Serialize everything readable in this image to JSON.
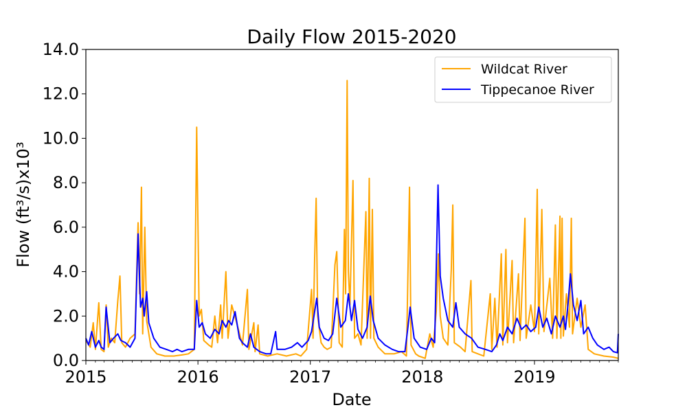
{
  "chart_data": {
    "type": "line",
    "title": "Daily Flow 2015-2020",
    "xlabel": "Date",
    "ylabel": "Flow (ft³/s)x10³",
    "xlim": [
      "2015-01-01",
      "2019-10-01"
    ],
    "ylim": [
      0,
      14
    ],
    "yticks": [
      "0.0",
      "2.0",
      "4.0",
      "6.0",
      "8.0",
      "10.0",
      "12.0",
      "14.0"
    ],
    "xticks": [
      "2015",
      "2016",
      "2017",
      "2018",
      "2019"
    ],
    "legend": {
      "position": "top-right"
    },
    "grid": false,
    "series": [
      {
        "name": "Wildcat River",
        "color": "#FFA500",
        "points": [
          [
            "2015-01-01",
            0.9
          ],
          [
            "2015-01-15",
            0.6
          ],
          [
            "2015-01-25",
            1.7
          ],
          [
            "2015-02-01",
            0.5
          ],
          [
            "2015-02-12",
            2.6
          ],
          [
            "2015-02-20",
            0.5
          ],
          [
            "2015-03-01",
            0.4
          ],
          [
            "2015-03-08",
            2.5
          ],
          [
            "2015-03-15",
            0.6
          ],
          [
            "2015-03-25",
            1.0
          ],
          [
            "2015-04-05",
            0.8
          ],
          [
            "2015-04-15",
            2.7
          ],
          [
            "2015-04-22",
            3.8
          ],
          [
            "2015-04-28",
            0.8
          ],
          [
            "2015-05-10",
            0.6
          ],
          [
            "2015-05-25",
            1.0
          ],
          [
            "2015-06-10",
            1.2
          ],
          [
            "2015-06-20",
            6.2
          ],
          [
            "2015-06-25",
            3.0
          ],
          [
            "2015-07-01",
            7.8
          ],
          [
            "2015-07-05",
            1.2
          ],
          [
            "2015-07-12",
            6.0
          ],
          [
            "2015-07-18",
            1.8
          ],
          [
            "2015-08-01",
            0.6
          ],
          [
            "2015-08-20",
            0.3
          ],
          [
            "2015-09-15",
            0.2
          ],
          [
            "2015-10-15",
            0.2
          ],
          [
            "2015-11-10",
            0.25
          ],
          [
            "2015-12-01",
            0.3
          ],
          [
            "2015-12-20",
            0.5
          ],
          [
            "2015-12-28",
            10.5
          ],
          [
            "2016-01-05",
            2.0
          ],
          [
            "2016-01-12",
            2.3
          ],
          [
            "2016-01-20",
            0.9
          ],
          [
            "2016-02-05",
            0.7
          ],
          [
            "2016-02-15",
            0.6
          ],
          [
            "2016-02-25",
            2.0
          ],
          [
            "2016-03-05",
            0.8
          ],
          [
            "2016-03-15",
            2.5
          ],
          [
            "2016-03-20",
            1.0
          ],
          [
            "2016-04-01",
            4.0
          ],
          [
            "2016-04-08",
            1.0
          ],
          [
            "2016-04-20",
            2.5
          ],
          [
            "2016-04-28",
            2.1
          ],
          [
            "2016-05-10",
            1.5
          ],
          [
            "2016-05-25",
            0.7
          ],
          [
            "2016-06-10",
            3.2
          ],
          [
            "2016-06-15",
            0.5
          ],
          [
            "2016-07-01",
            1.7
          ],
          [
            "2016-07-05",
            0.4
          ],
          [
            "2016-07-15",
            1.6
          ],
          [
            "2016-07-20",
            0.3
          ],
          [
            "2016-08-15",
            0.2
          ],
          [
            "2016-09-15",
            0.3
          ],
          [
            "2016-10-15",
            0.2
          ],
          [
            "2016-11-15",
            0.3
          ],
          [
            "2016-12-01",
            0.2
          ],
          [
            "2016-12-20",
            0.5
          ],
          [
            "2017-01-05",
            3.2
          ],
          [
            "2017-01-10",
            1.0
          ],
          [
            "2017-01-15",
            4.6
          ],
          [
            "2017-01-20",
            7.3
          ],
          [
            "2017-01-25",
            2.0
          ],
          [
            "2017-02-05",
            0.8
          ],
          [
            "2017-02-15",
            0.6
          ],
          [
            "2017-02-25",
            0.5
          ],
          [
            "2017-03-10",
            0.6
          ],
          [
            "2017-03-22",
            4.3
          ],
          [
            "2017-03-28",
            4.9
          ],
          [
            "2017-04-05",
            0.8
          ],
          [
            "2017-04-15",
            0.6
          ],
          [
            "2017-04-22",
            5.9
          ],
          [
            "2017-04-26",
            3.0
          ],
          [
            "2017-05-01",
            12.6
          ],
          [
            "2017-05-05",
            4.0
          ],
          [
            "2017-05-10",
            2.5
          ],
          [
            "2017-05-20",
            8.1
          ],
          [
            "2017-05-25",
            1.0
          ],
          [
            "2017-06-05",
            1.2
          ],
          [
            "2017-06-15",
            0.7
          ],
          [
            "2017-07-01",
            6.7
          ],
          [
            "2017-07-05",
            1.0
          ],
          [
            "2017-07-12",
            8.2
          ],
          [
            "2017-07-16",
            1.0
          ],
          [
            "2017-07-22",
            6.8
          ],
          [
            "2017-07-27",
            1.0
          ],
          [
            "2017-08-10",
            0.6
          ],
          [
            "2017-09-01",
            0.3
          ],
          [
            "2017-10-01",
            0.3
          ],
          [
            "2017-10-25",
            0.4
          ],
          [
            "2017-11-10",
            0.2
          ],
          [
            "2017-11-20",
            7.8
          ],
          [
            "2017-11-25",
            0.7
          ],
          [
            "2017-12-10",
            0.3
          ],
          [
            "2017-12-20",
            0.2
          ],
          [
            "2018-01-10",
            0.1
          ],
          [
            "2018-01-25",
            1.2
          ],
          [
            "2018-02-05",
            0.6
          ],
          [
            "2018-02-15",
            2.2
          ],
          [
            "2018-02-22",
            4.8
          ],
          [
            "2018-02-28",
            2.0
          ],
          [
            "2018-03-10",
            1.0
          ],
          [
            "2018-03-25",
            0.7
          ],
          [
            "2018-04-05",
            4.1
          ],
          [
            "2018-04-10",
            7.0
          ],
          [
            "2018-04-15",
            0.8
          ],
          [
            "2018-05-05",
            0.6
          ],
          [
            "2018-05-20",
            0.4
          ],
          [
            "2018-06-08",
            3.6
          ],
          [
            "2018-06-12",
            0.4
          ],
          [
            "2018-07-01",
            0.3
          ],
          [
            "2018-07-20",
            0.2
          ],
          [
            "2018-08-10",
            3.0
          ],
          [
            "2018-08-15",
            0.5
          ],
          [
            "2018-08-25",
            2.8
          ],
          [
            "2018-09-01",
            0.6
          ],
          [
            "2018-09-15",
            4.8
          ],
          [
            "2018-09-20",
            0.7
          ],
          [
            "2018-09-30",
            5.0
          ],
          [
            "2018-10-05",
            0.8
          ],
          [
            "2018-10-20",
            4.5
          ],
          [
            "2018-10-25",
            0.8
          ],
          [
            "2018-11-10",
            3.9
          ],
          [
            "2018-11-15",
            0.9
          ],
          [
            "2018-12-01",
            6.4
          ],
          [
            "2018-12-05",
            1.0
          ],
          [
            "2018-12-20",
            2.5
          ],
          [
            "2019-01-01",
            1.3
          ],
          [
            "2019-01-10",
            7.7
          ],
          [
            "2019-01-15",
            1.2
          ],
          [
            "2019-01-25",
            6.8
          ],
          [
            "2019-02-01",
            1.3
          ],
          [
            "2019-02-20",
            3.7
          ],
          [
            "2019-03-01",
            1.0
          ],
          [
            "2019-03-10",
            6.1
          ],
          [
            "2019-03-15",
            1.0
          ],
          [
            "2019-03-25",
            6.5
          ],
          [
            "2019-03-28",
            1.0
          ],
          [
            "2019-04-01",
            6.4
          ],
          [
            "2019-04-05",
            1.1
          ],
          [
            "2019-04-15",
            3.0
          ],
          [
            "2019-04-25",
            1.5
          ],
          [
            "2019-05-01",
            6.4
          ],
          [
            "2019-05-05",
            1.2
          ],
          [
            "2019-05-20",
            2.8
          ],
          [
            "2019-06-01",
            1.5
          ],
          [
            "2019-06-15",
            2.5
          ],
          [
            "2019-06-25",
            0.5
          ],
          [
            "2019-07-15",
            0.3
          ],
          [
            "2019-08-15",
            0.2
          ],
          [
            "2019-09-15",
            0.15
          ],
          [
            "2019-10-01",
            0.1
          ]
        ]
      },
      {
        "name": "Tippecanoe River",
        "color": "#0000FF",
        "points": [
          [
            "2015-01-01",
            1.0
          ],
          [
            "2015-01-10",
            0.7
          ],
          [
            "2015-01-20",
            1.3
          ],
          [
            "2015-02-01",
            0.6
          ],
          [
            "2015-02-12",
            0.9
          ],
          [
            "2015-02-20",
            0.6
          ],
          [
            "2015-03-01",
            0.5
          ],
          [
            "2015-03-08",
            2.4
          ],
          [
            "2015-03-20",
            0.8
          ],
          [
            "2015-04-01",
            1.0
          ],
          [
            "2015-04-15",
            1.2
          ],
          [
            "2015-04-25",
            0.9
          ],
          [
            "2015-05-10",
            0.8
          ],
          [
            "2015-05-25",
            0.6
          ],
          [
            "2015-06-10",
            1.0
          ],
          [
            "2015-06-20",
            5.7
          ],
          [
            "2015-06-28",
            2.4
          ],
          [
            "2015-07-05",
            2.8
          ],
          [
            "2015-07-10",
            2.0
          ],
          [
            "2015-07-18",
            3.1
          ],
          [
            "2015-07-25",
            1.7
          ],
          [
            "2015-08-10",
            1.0
          ],
          [
            "2015-08-30",
            0.6
          ],
          [
            "2015-09-20",
            0.5
          ],
          [
            "2015-10-10",
            0.4
          ],
          [
            "2015-10-25",
            0.5
          ],
          [
            "2015-11-10",
            0.4
          ],
          [
            "2015-12-01",
            0.5
          ],
          [
            "2015-12-20",
            0.5
          ],
          [
            "2015-12-28",
            2.7
          ],
          [
            "2016-01-05",
            1.5
          ],
          [
            "2016-01-15",
            1.7
          ],
          [
            "2016-01-25",
            1.2
          ],
          [
            "2016-02-10",
            1.0
          ],
          [
            "2016-02-25",
            1.4
          ],
          [
            "2016-03-10",
            1.2
          ],
          [
            "2016-03-20",
            1.8
          ],
          [
            "2016-04-01",
            1.5
          ],
          [
            "2016-04-10",
            1.8
          ],
          [
            "2016-04-20",
            1.6
          ],
          [
            "2016-05-01",
            2.2
          ],
          [
            "2016-05-15",
            1.0
          ],
          [
            "2016-05-25",
            0.8
          ],
          [
            "2016-06-10",
            0.6
          ],
          [
            "2016-06-20",
            1.2
          ],
          [
            "2016-07-01",
            0.6
          ],
          [
            "2016-07-20",
            0.4
          ],
          [
            "2016-08-10",
            0.3
          ],
          [
            "2016-08-25",
            0.3
          ],
          [
            "2016-09-10",
            1.3
          ],
          [
            "2016-09-15",
            0.5
          ],
          [
            "2016-10-10",
            0.5
          ],
          [
            "2016-11-01",
            0.6
          ],
          [
            "2016-11-20",
            0.8
          ],
          [
            "2016-12-05",
            0.6
          ],
          [
            "2016-12-25",
            0.9
          ],
          [
            "2017-01-05",
            1.3
          ],
          [
            "2017-01-15",
            2.2
          ],
          [
            "2017-01-22",
            2.8
          ],
          [
            "2017-01-30",
            1.5
          ],
          [
            "2017-02-15",
            1.0
          ],
          [
            "2017-03-01",
            0.9
          ],
          [
            "2017-03-15",
            1.2
          ],
          [
            "2017-03-28",
            2.8
          ],
          [
            "2017-04-10",
            1.5
          ],
          [
            "2017-04-25",
            1.8
          ],
          [
            "2017-05-05",
            3.0
          ],
          [
            "2017-05-15",
            1.8
          ],
          [
            "2017-05-25",
            2.7
          ],
          [
            "2017-06-05",
            1.4
          ],
          [
            "2017-06-20",
            1.0
          ],
          [
            "2017-07-05",
            1.5
          ],
          [
            "2017-07-15",
            2.9
          ],
          [
            "2017-07-25",
            1.8
          ],
          [
            "2017-08-10",
            1.0
          ],
          [
            "2017-09-01",
            0.7
          ],
          [
            "2017-09-25",
            0.5
          ],
          [
            "2017-10-15",
            0.4
          ],
          [
            "2017-11-05",
            0.4
          ],
          [
            "2017-11-15",
            1.5
          ],
          [
            "2017-11-22",
            2.4
          ],
          [
            "2017-12-05",
            1.0
          ],
          [
            "2017-12-25",
            0.6
          ],
          [
            "2018-01-15",
            0.5
          ],
          [
            "2018-01-30",
            1.0
          ],
          [
            "2018-02-10",
            0.8
          ],
          [
            "2018-02-21",
            7.9
          ],
          [
            "2018-02-28",
            3.8
          ],
          [
            "2018-03-10",
            2.8
          ],
          [
            "2018-03-25",
            1.8
          ],
          [
            "2018-04-10",
            1.5
          ],
          [
            "2018-04-20",
            2.6
          ],
          [
            "2018-05-01",
            1.5
          ],
          [
            "2018-05-20",
            1.2
          ],
          [
            "2018-06-10",
            1.0
          ],
          [
            "2018-07-01",
            0.6
          ],
          [
            "2018-07-25",
            0.5
          ],
          [
            "2018-08-15",
            0.4
          ],
          [
            "2018-08-30",
            0.7
          ],
          [
            "2018-09-10",
            1.2
          ],
          [
            "2018-09-20",
            0.9
          ],
          [
            "2018-10-05",
            1.5
          ],
          [
            "2018-10-20",
            1.2
          ],
          [
            "2018-11-05",
            1.9
          ],
          [
            "2018-11-20",
            1.4
          ],
          [
            "2018-12-05",
            1.6
          ],
          [
            "2018-12-20",
            1.3
          ],
          [
            "2019-01-05",
            1.5
          ],
          [
            "2019-01-15",
            2.4
          ],
          [
            "2019-01-28",
            1.5
          ],
          [
            "2019-02-10",
            1.9
          ],
          [
            "2019-02-25",
            1.2
          ],
          [
            "2019-03-10",
            2.0
          ],
          [
            "2019-03-25",
            1.5
          ],
          [
            "2019-04-05",
            2.0
          ],
          [
            "2019-04-12",
            1.4
          ],
          [
            "2019-04-20",
            2.5
          ],
          [
            "2019-04-28",
            3.9
          ],
          [
            "2019-05-08",
            2.5
          ],
          [
            "2019-05-20",
            1.8
          ],
          [
            "2019-06-01",
            2.7
          ],
          [
            "2019-06-10",
            1.2
          ],
          [
            "2019-06-25",
            1.5
          ],
          [
            "2019-07-10",
            1.0
          ],
          [
            "2019-07-25",
            0.7
          ],
          [
            "2019-08-15",
            0.5
          ],
          [
            "2019-09-01",
            0.6
          ],
          [
            "2019-09-15",
            0.4
          ],
          [
            "2019-09-28",
            0.35
          ],
          [
            "2019-10-01",
            1.2
          ]
        ]
      }
    ]
  }
}
